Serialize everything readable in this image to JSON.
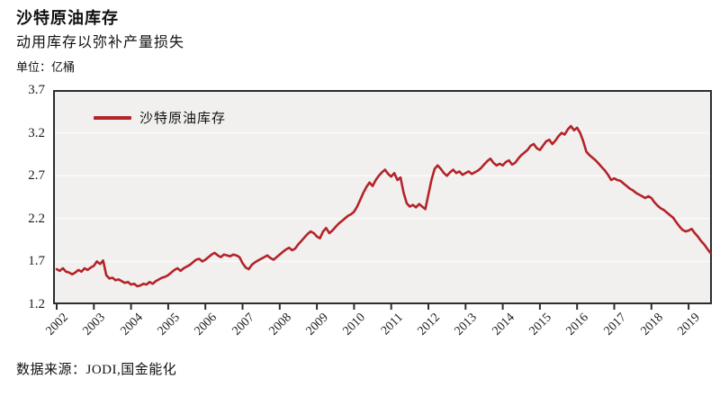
{
  "header": {
    "title": "沙特原油库存",
    "subtitle": "动用库存以弥补产量损失",
    "unit_label": "单位：亿桶"
  },
  "footer": {
    "source": "数据来源：JODI,国金能化"
  },
  "colors": {
    "line": "#b42328",
    "plot_background": "#f1f0ef",
    "gridline": "#fafaf8",
    "axis": "#2d2d2d"
  },
  "chart_data": {
    "type": "line",
    "title": "沙特原油库存",
    "subtitle": "动用库存以弥补产量损失",
    "unit": "亿桶",
    "xlabel": "",
    "ylabel": "亿桶",
    "ylim": [
      1.2,
      3.7
    ],
    "y_ticks": [
      1.2,
      1.7,
      2.2,
      2.7,
      3.2,
      3.7
    ],
    "x_tick_labels": [
      "2002",
      "2003",
      "2004",
      "2005",
      "2006",
      "2007",
      "2008",
      "2009",
      "2010",
      "2011",
      "2012",
      "2013",
      "2014",
      "2015",
      "2016",
      "2017",
      "2018",
      "2019"
    ],
    "grid": "horizontal",
    "legend_position": "top-left",
    "x_start": 2002.0,
    "x_step_years": 0.0833333,
    "series": [
      {
        "name": "沙特原油库存",
        "color": "#b42328",
        "values": [
          1.61,
          1.59,
          1.62,
          1.58,
          1.57,
          1.55,
          1.57,
          1.6,
          1.58,
          1.62,
          1.6,
          1.63,
          1.65,
          1.7,
          1.67,
          1.71,
          1.54,
          1.5,
          1.51,
          1.48,
          1.49,
          1.47,
          1.45,
          1.46,
          1.43,
          1.44,
          1.41,
          1.42,
          1.44,
          1.43,
          1.46,
          1.44,
          1.47,
          1.49,
          1.51,
          1.52,
          1.54,
          1.57,
          1.6,
          1.62,
          1.59,
          1.62,
          1.64,
          1.66,
          1.69,
          1.72,
          1.73,
          1.7,
          1.72,
          1.75,
          1.78,
          1.8,
          1.77,
          1.75,
          1.78,
          1.77,
          1.76,
          1.78,
          1.77,
          1.75,
          1.68,
          1.63,
          1.61,
          1.66,
          1.69,
          1.71,
          1.73,
          1.75,
          1.77,
          1.74,
          1.72,
          1.75,
          1.78,
          1.81,
          1.84,
          1.86,
          1.83,
          1.85,
          1.9,
          1.94,
          1.98,
          2.02,
          2.05,
          2.03,
          1.99,
          1.97,
          2.05,
          2.09,
          2.03,
          2.06,
          2.1,
          2.14,
          2.17,
          2.2,
          2.23,
          2.25,
          2.28,
          2.34,
          2.42,
          2.5,
          2.57,
          2.62,
          2.58,
          2.65,
          2.7,
          2.74,
          2.77,
          2.72,
          2.69,
          2.73,
          2.65,
          2.68,
          2.5,
          2.38,
          2.34,
          2.36,
          2.33,
          2.37,
          2.34,
          2.31,
          2.48,
          2.65,
          2.78,
          2.82,
          2.78,
          2.73,
          2.7,
          2.74,
          2.77,
          2.73,
          2.75,
          2.71,
          2.73,
          2.75,
          2.72,
          2.74,
          2.76,
          2.79,
          2.83,
          2.87,
          2.9,
          2.85,
          2.82,
          2.84,
          2.82,
          2.86,
          2.88,
          2.83,
          2.85,
          2.9,
          2.94,
          2.97,
          3.0,
          3.05,
          3.07,
          3.02,
          3.0,
          3.05,
          3.1,
          3.12,
          3.07,
          3.11,
          3.16,
          3.2,
          3.18,
          3.24,
          3.28,
          3.23,
          3.26,
          3.2,
          3.1,
          2.98,
          2.94,
          2.91,
          2.88,
          2.84,
          2.8,
          2.76,
          2.71,
          2.65,
          2.67,
          2.65,
          2.64,
          2.61,
          2.58,
          2.55,
          2.53,
          2.5,
          2.48,
          2.46,
          2.44,
          2.46,
          2.44,
          2.39,
          2.35,
          2.32,
          2.3,
          2.27,
          2.24,
          2.21,
          2.16,
          2.11,
          2.07,
          2.05,
          2.06,
          2.08,
          2.03,
          1.99,
          1.94,
          1.9,
          1.85,
          1.8
        ]
      }
    ]
  }
}
